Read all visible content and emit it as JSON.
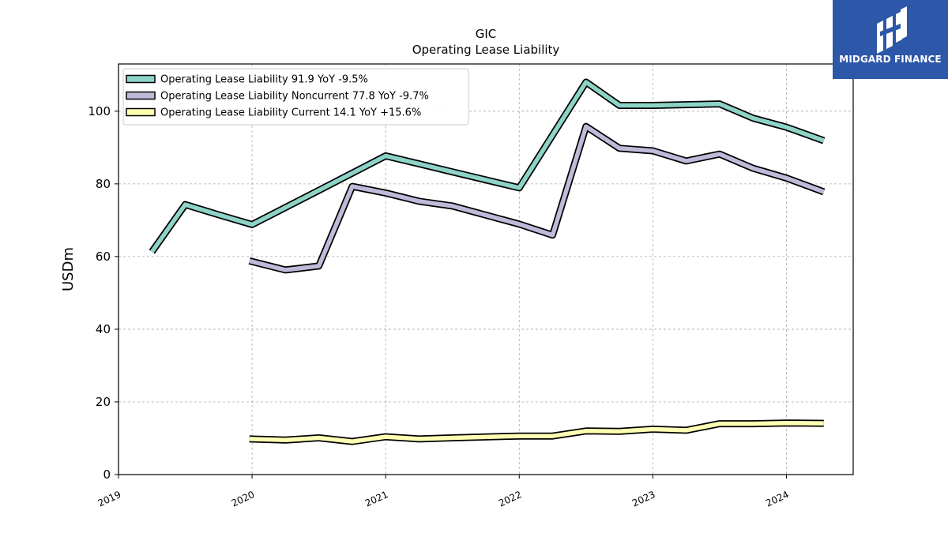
{
  "logo": {
    "text": "MIDGARD FINANCE",
    "background": "#2d57a8"
  },
  "chart_data": {
    "type": "line",
    "title": "GIC",
    "subtitle": "Operating Lease Liability",
    "ylabel": "USDm",
    "xlabel": "",
    "xlim": [
      2019.0,
      2024.5
    ],
    "ylim": [
      0,
      113
    ],
    "yticks": [
      0,
      20,
      40,
      60,
      80,
      100
    ],
    "xticks": [
      "2019",
      "2020",
      "2021",
      "2022",
      "2023",
      "2024"
    ],
    "grid": true,
    "legend_position": "top-left",
    "series": [
      {
        "name": "Operating Lease Liability  91.9 YoY -9.5%",
        "color": "#8dd3c7",
        "x": [
          2019.25,
          2019.5,
          2019.75,
          2020.0,
          2020.5,
          2021.0,
          2021.25,
          2021.5,
          2022.0,
          2022.5,
          2022.75,
          2023.0,
          2023.5,
          2023.75,
          2024.0,
          2024.28
        ],
        "y": [
          61.3,
          74.3,
          71.5,
          68.8,
          78.2,
          87.7,
          85.5,
          83.3,
          78.9,
          108.0,
          101.6,
          101.6,
          102.0,
          98.1,
          95.6,
          91.9
        ]
      },
      {
        "name": "Operating Lease Liability Noncurrent  77.8 YoY -9.7%",
        "color": "#bebada",
        "x": [
          2019.98,
          2020.25,
          2020.5,
          2020.75,
          2021.0,
          2021.25,
          2021.5,
          2022.0,
          2022.25,
          2022.5,
          2022.75,
          2023.0,
          2023.25,
          2023.5,
          2023.75,
          2024.0,
          2024.28
        ],
        "y": [
          58.8,
          56.3,
          57.4,
          79.3,
          77.5,
          75.2,
          73.9,
          68.9,
          65.9,
          95.8,
          89.8,
          89.1,
          86.3,
          88.2,
          84.3,
          81.6,
          77.8
        ]
      },
      {
        "name": "Operating Lease Liability Current  14.1 YoY +15.6%",
        "color": "#ffffb3",
        "x": [
          2019.98,
          2020.25,
          2020.5,
          2020.75,
          2021.0,
          2021.25,
          2021.5,
          2022.0,
          2022.25,
          2022.5,
          2022.75,
          2023.0,
          2023.25,
          2023.5,
          2023.75,
          2024.0,
          2024.28
        ],
        "y": [
          9.8,
          9.5,
          10.1,
          9.1,
          10.4,
          9.8,
          10.1,
          10.6,
          10.6,
          12.0,
          11.9,
          12.5,
          12.2,
          14.0,
          14.0,
          14.2,
          14.1
        ]
      }
    ]
  }
}
